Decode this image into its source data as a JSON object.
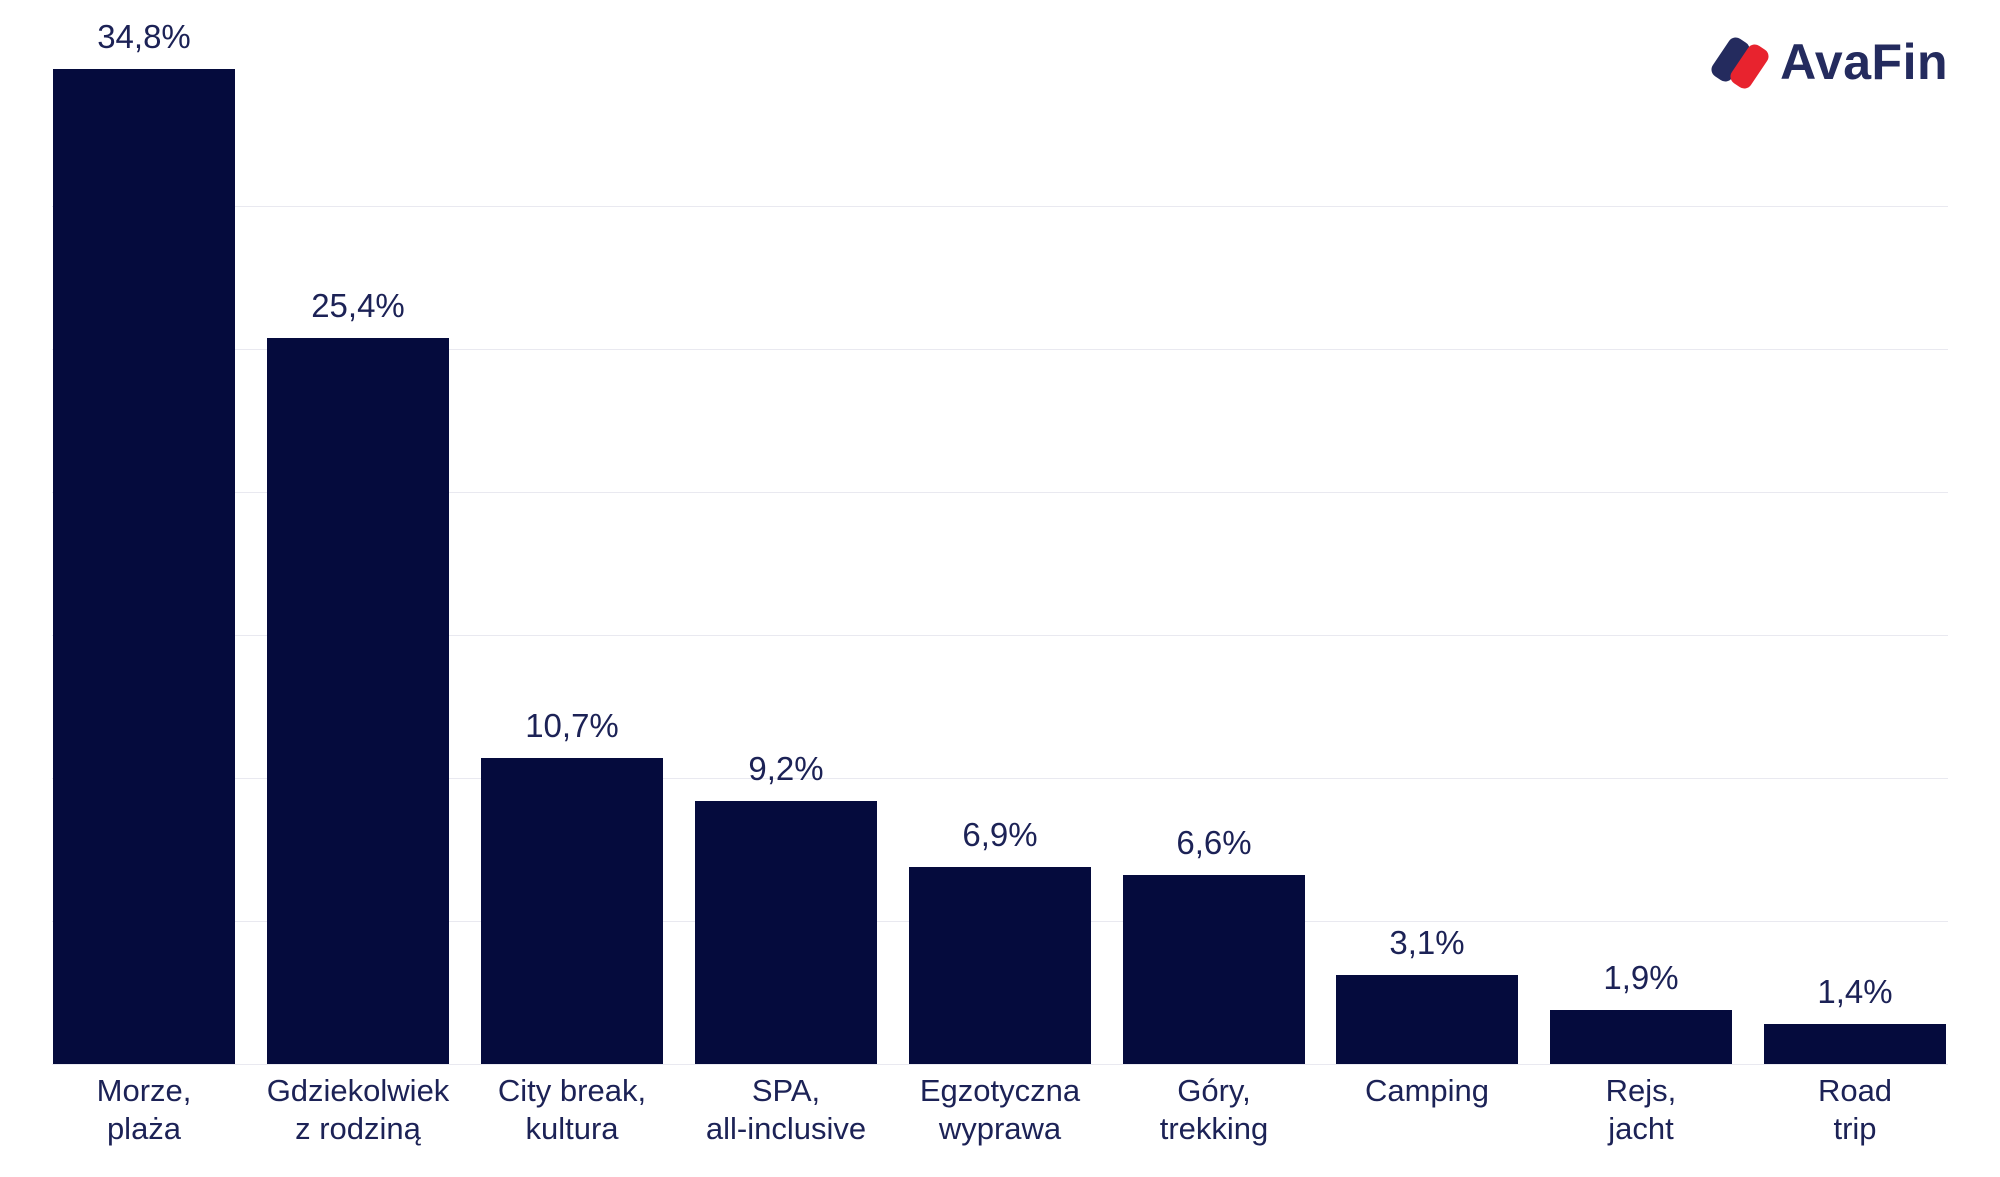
{
  "logo": {
    "text": "AvaFin",
    "navy_color": "#242b5e",
    "red_color": "#e8232e"
  },
  "chart_data": {
    "type": "bar",
    "title": "",
    "xlabel": "",
    "ylabel": "",
    "categories": [
      "Morze,\nplaża",
      "Gdziekolwiek\nz rodziną",
      "City break,\nkultura",
      "SPA,\nall-inclusive",
      "Egzotyczna\nwyprawa",
      "Góry,\ntrekking",
      "Camping",
      "Rejs,\njacht",
      "Road\ntrip"
    ],
    "values": [
      34.8,
      25.4,
      10.7,
      9.2,
      6.9,
      6.6,
      3.1,
      1.9,
      1.4
    ],
    "value_labels": [
      "34,8%",
      "25,4%",
      "10,7%",
      "9,2%",
      "6,9%",
      "6,6%",
      "3,1%",
      "1,9%",
      "1,4%"
    ],
    "unit": "%",
    "ylim": [
      0,
      36
    ],
    "gridlines_pct": [
      0,
      5,
      10,
      15,
      20,
      25,
      30
    ],
    "grid_on": true,
    "legend": "none",
    "bar_color": "#050b3d",
    "label_color": "#1c2256",
    "gridline_color": "#e9e9f0",
    "background_color": "#ffffff"
  }
}
